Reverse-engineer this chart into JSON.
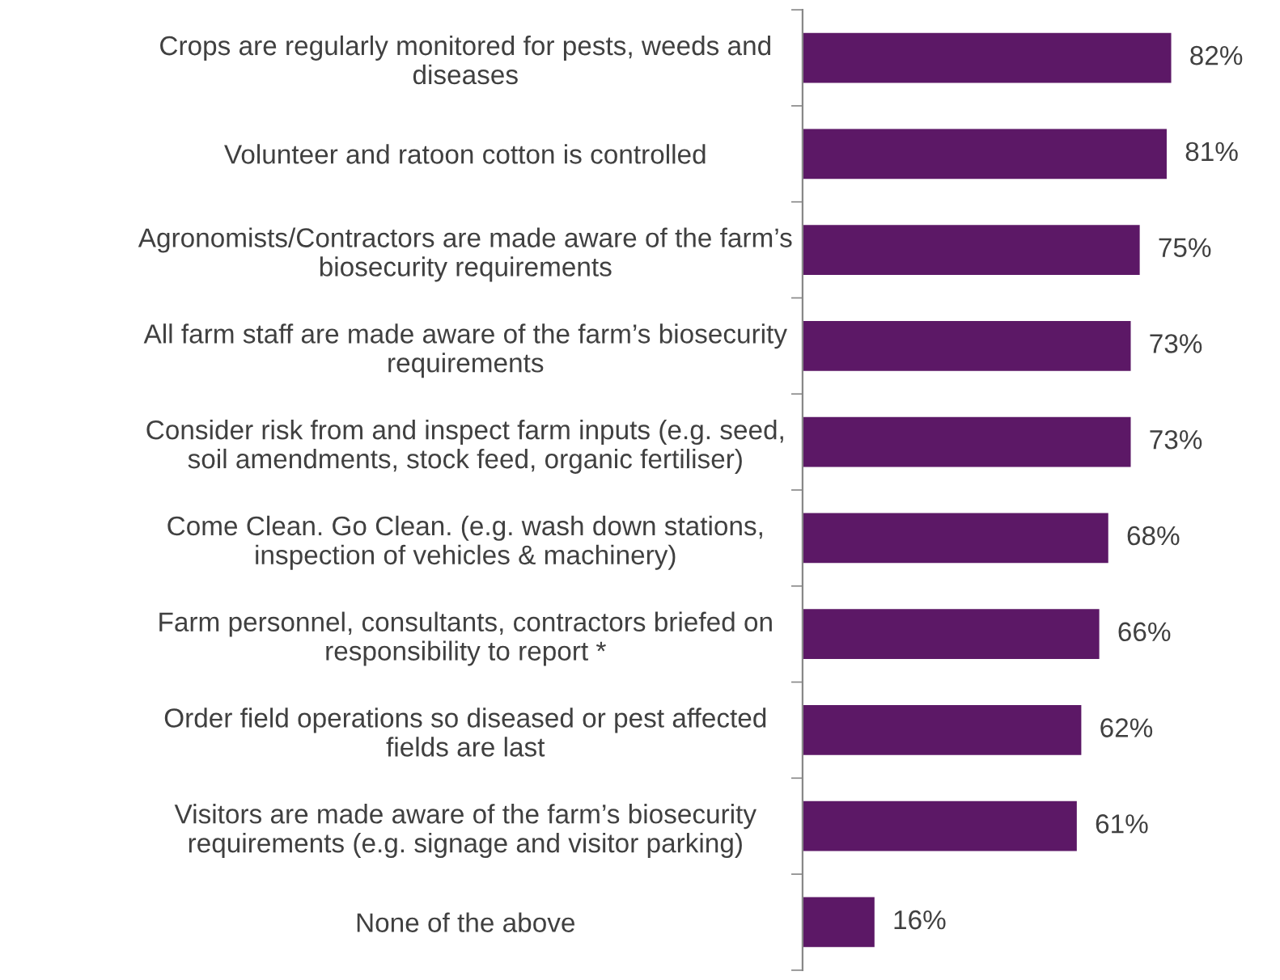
{
  "chart_data": {
    "type": "bar",
    "orientation": "horizontal",
    "categories": [
      "Crops are regularly monitored for pests, weeds and\ndiseases",
      "Volunteer and ratoon cotton is controlled",
      "Agronomists/Contractors are made aware of the farm’s\nbiosecurity requirements",
      "All farm staff are made aware of the farm’s biosecurity\nrequirements",
      "Consider risk from and inspect farm inputs (e.g. seed,\nsoil amendments, stock feed, organic fertiliser)",
      "Come Clean. Go Clean. (e.g. wash down stations,\ninspection of vehicles & machinery)",
      "Farm personnel, consultants, contractors briefed on\nresponsibility to report *",
      "Order field operations so diseased or pest affected\nfields are last",
      "Visitors are made aware of the farm’s biosecurity\nrequirements (e.g. signage and visitor parking)",
      "None of the above"
    ],
    "values": [
      82,
      81,
      75,
      73,
      73,
      68,
      66,
      62,
      61,
      16
    ],
    "value_labels": [
      "82%",
      "81%",
      "75%",
      "73%",
      "73%",
      "68%",
      "66%",
      "62%",
      "61%",
      "16%"
    ],
    "color": "#5c1866",
    "grid": false,
    "legend": false
  }
}
